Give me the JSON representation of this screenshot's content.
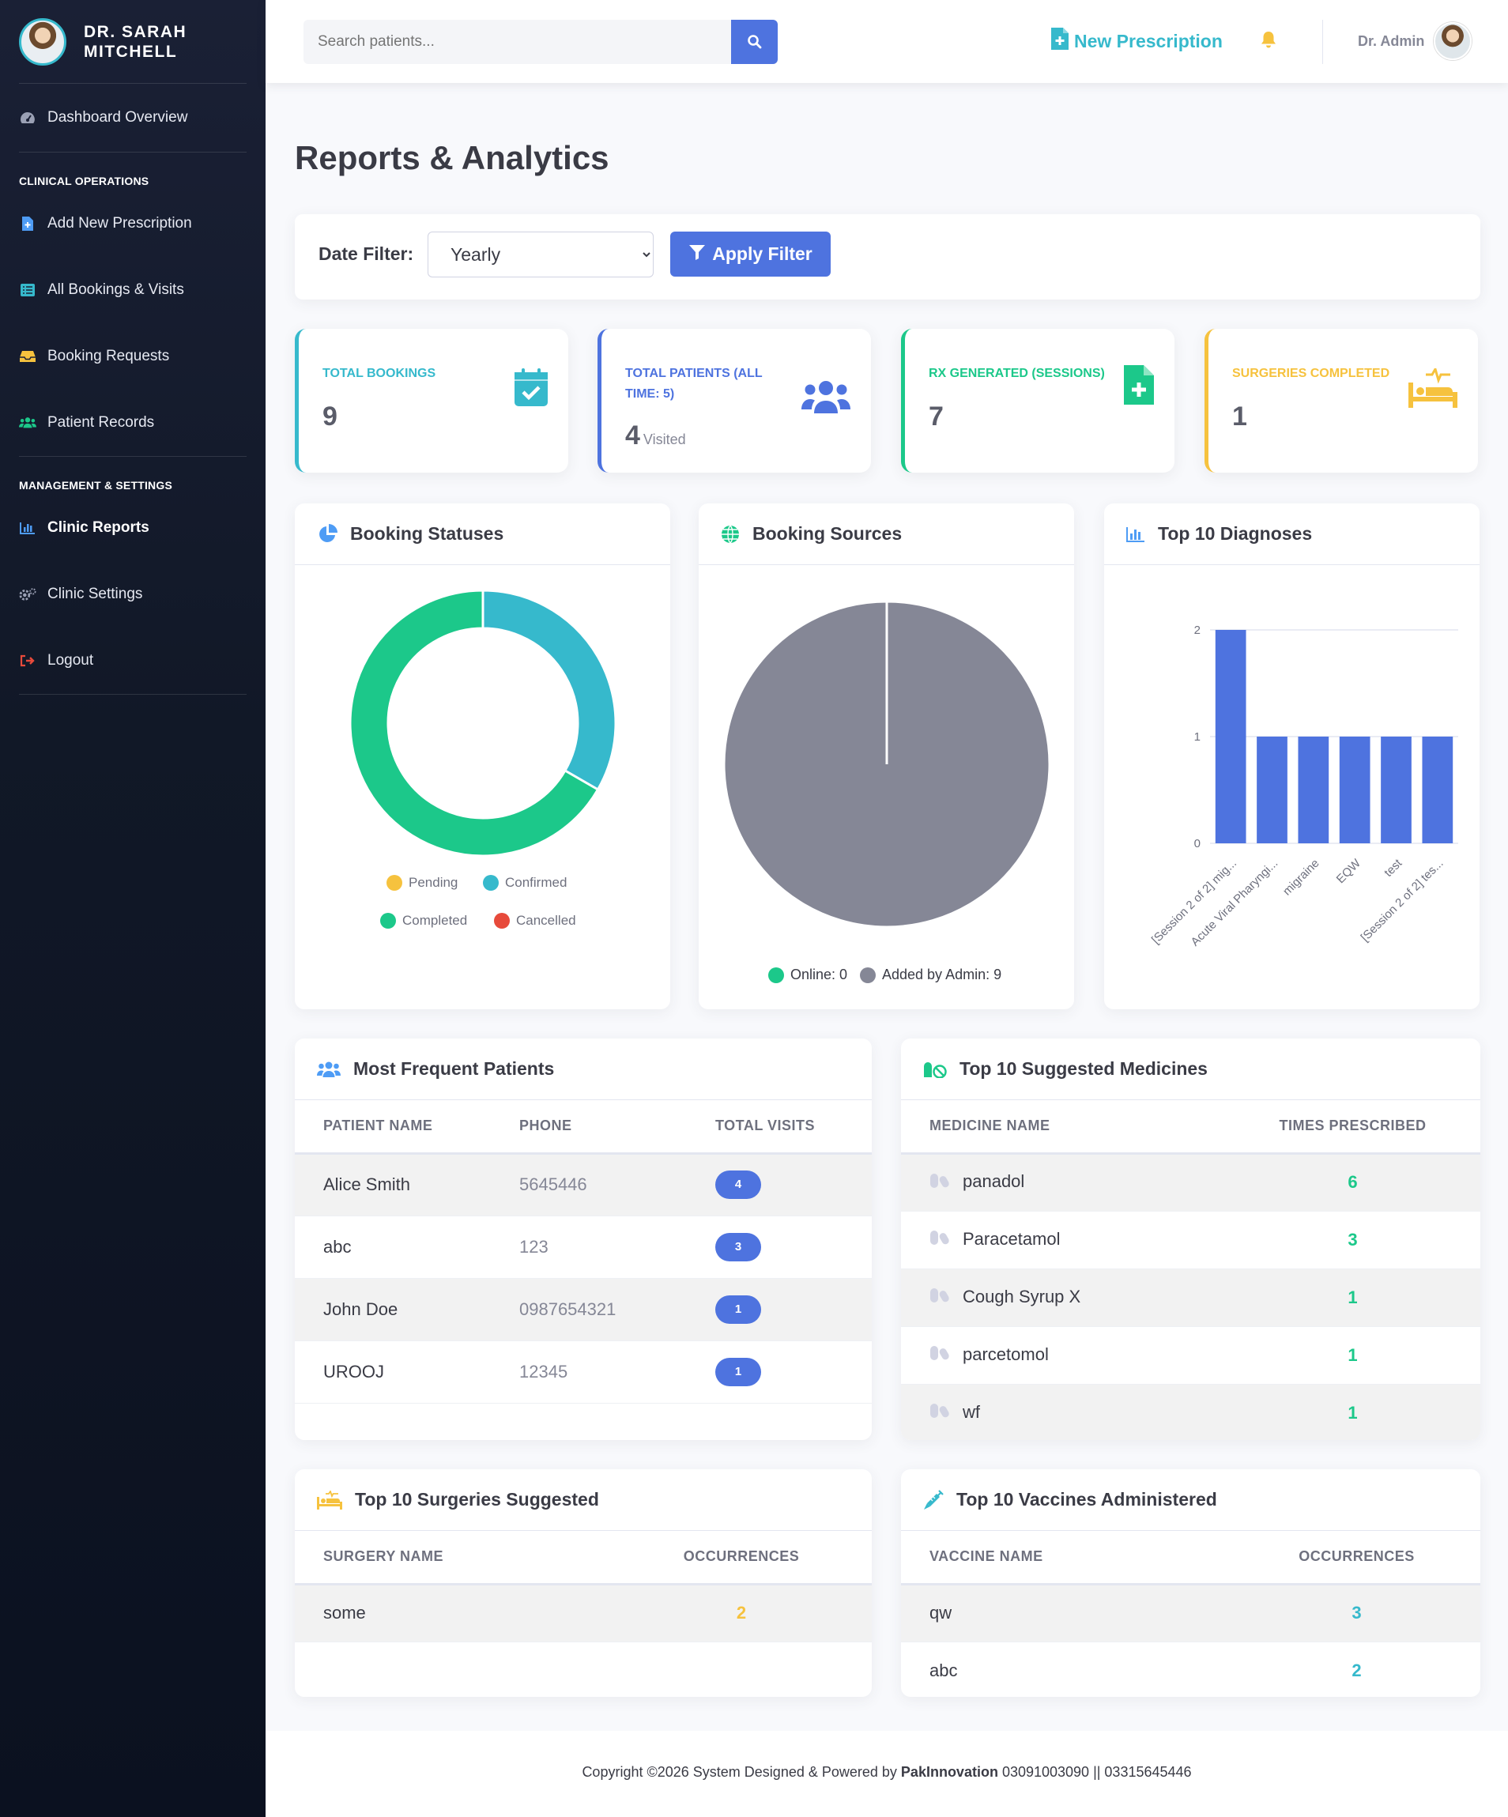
{
  "sidebar": {
    "doctor_name": "DR. SARAH MITCHELL",
    "items": {
      "dashboard": "Dashboard Overview",
      "add_prescription": "Add New Prescription",
      "bookings": "All Bookings & Visits",
      "requests": "Booking Requests",
      "patients": "Patient Records",
      "reports": "Clinic Reports",
      "settings": "Clinic Settings",
      "logout": "Logout"
    },
    "headings": {
      "clinical": "CLINICAL OPERATIONS",
      "management": "MANAGEMENT & SETTINGS"
    }
  },
  "topbar": {
    "search_placeholder": "Search patients...",
    "new_prescription": "New Prescription",
    "user_name": "Dr. Admin"
  },
  "page": {
    "title": "Reports & Analytics",
    "filter_label": "Date Filter:",
    "filter_value": "Yearly",
    "apply_label": "Apply Filter"
  },
  "stats": {
    "total_bookings": {
      "label": "TOTAL BOOKINGS",
      "value": "9"
    },
    "total_patients": {
      "label": "TOTAL PATIENTS (ALL TIME: 5)",
      "value": "4",
      "sub": "Visited"
    },
    "rx_generated": {
      "label": "RX GENERATED (SESSIONS)",
      "value": "7"
    },
    "surgeries": {
      "label": "SURGERIES COMPLETED",
      "value": "1"
    }
  },
  "colors": {
    "primary": "#4e73df",
    "info": "#36b9cc",
    "success": "#1cc88a",
    "warning": "#f6c23e",
    "danger": "#e74a3b",
    "gray": "#858796"
  },
  "chart_data": [
    {
      "type": "pie",
      "variant": "doughnut",
      "title": "Booking Statuses",
      "categories": [
        "Pending",
        "Confirmed",
        "Completed",
        "Cancelled"
      ],
      "values": [
        0,
        3,
        6,
        0
      ],
      "colors": [
        "#f6c23e",
        "#36b9cc",
        "#1cc88a",
        "#e74a3b"
      ],
      "legend": "bottom"
    },
    {
      "type": "pie",
      "title": "Booking Sources",
      "categories": [
        "Online",
        "Added by Admin"
      ],
      "values": [
        0,
        9
      ],
      "legend_labels": [
        "Online: 0",
        "Added by Admin: 9"
      ],
      "colors": [
        "#1cc88a",
        "#858796"
      ],
      "legend": "bottom"
    },
    {
      "type": "bar",
      "title": "Top 10 Diagnoses",
      "categories": [
        "[Session 2 of 2] mig...",
        "Acute Viral Pharyngi...",
        "migraine",
        "EQW",
        "test",
        "[Session 2 of 2] tes..."
      ],
      "values": [
        2,
        1,
        1,
        1,
        1,
        1
      ],
      "yticks": [
        "0",
        "1",
        "2"
      ],
      "ylim": [
        0,
        2
      ],
      "color": "#4e73df",
      "grid": true
    }
  ],
  "frequent_patients": {
    "title": "Most Frequent Patients",
    "headers": [
      "PATIENT NAME",
      "PHONE",
      "TOTAL VISITS"
    ],
    "rows": [
      {
        "name": "Alice Smith",
        "phone": "5645446",
        "visits": "4"
      },
      {
        "name": "abc",
        "phone": "123",
        "visits": "3"
      },
      {
        "name": "John Doe",
        "phone": "0987654321",
        "visits": "1"
      },
      {
        "name": "UROOJ",
        "phone": "12345",
        "visits": "1"
      }
    ]
  },
  "medicines": {
    "title": "Top 10 Suggested Medicines",
    "headers": [
      "MEDICINE NAME",
      "TIMES PRESCRIBED"
    ],
    "rows": [
      {
        "name": "panadol",
        "count": "6"
      },
      {
        "name": "Paracetamol",
        "count": "3"
      },
      {
        "name": "Cough Syrup X",
        "count": "1"
      },
      {
        "name": "parcetomol",
        "count": "1"
      },
      {
        "name": "wf",
        "count": "1"
      }
    ]
  },
  "surgeries_table": {
    "title": "Top 10 Surgeries Suggested",
    "headers": [
      "SURGERY NAME",
      "OCCURRENCES"
    ],
    "rows": [
      {
        "name": "some",
        "count": "2"
      }
    ]
  },
  "vaccines": {
    "title": "Top 10 Vaccines Administered",
    "headers": [
      "VACCINE NAME",
      "OCCURRENCES"
    ],
    "rows": [
      {
        "name": "qw",
        "count": "3"
      },
      {
        "name": "abc",
        "count": "2"
      }
    ]
  },
  "footer": {
    "prefix": "Copyright ©2026 System Designed & Powered by ",
    "company": "PakInnovation",
    "suffix": " 03091003090 || 03315645446"
  }
}
